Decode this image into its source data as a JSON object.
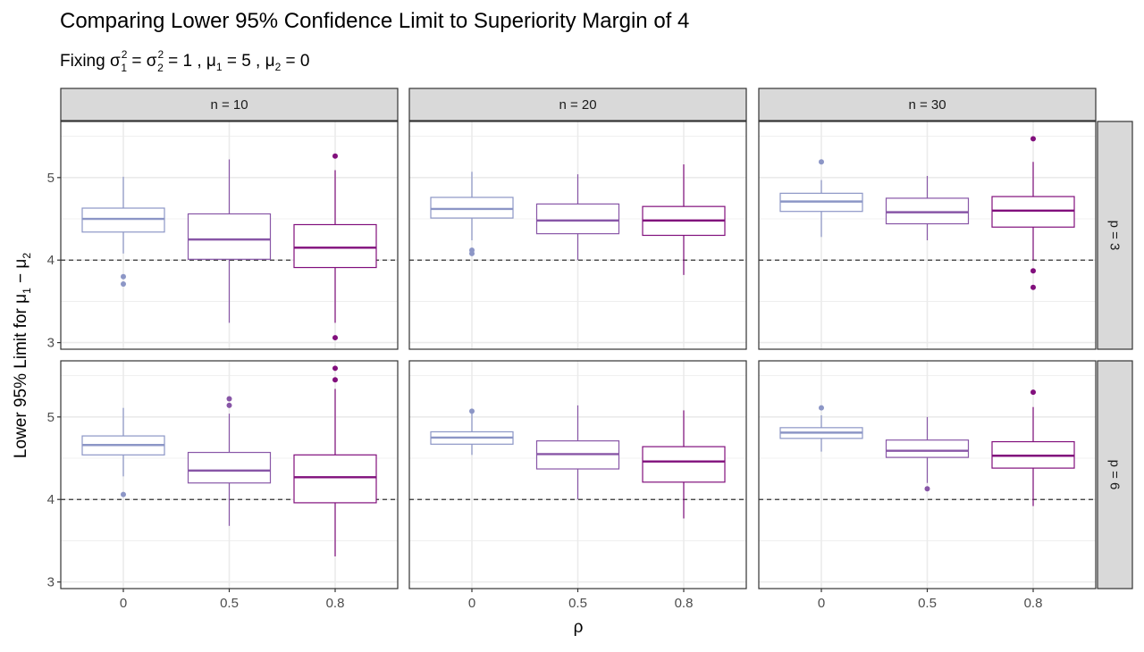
{
  "chart_data": {
    "type": "boxplot",
    "title": "Comparing Lower 95% Confidence Limit to Superiority Margin of 4",
    "subtitle": {
      "prefix": "Fixing ",
      "sigma": "σ",
      "sigma1_sub": "1",
      "sigma2_sub": "2",
      "sup": "2",
      "eq1": " = ",
      "eq2": " = 1 , ",
      "mu": "μ",
      "mu1_sub": "1",
      "mu1_rest": " = 5 , ",
      "mu2_sub": "2",
      "mu2_rest": " = 0"
    },
    "xlabel": "ρ",
    "ylabel": {
      "prefix": "Lower 95% Limit for ",
      "mu": "μ",
      "sub1": "1",
      "minus": " − ",
      "sub2": "2"
    },
    "x_categories": [
      "0",
      "0.5",
      "0.8"
    ],
    "y_ticks": [
      "3",
      "4",
      "5"
    ],
    "y_tick_values": [
      3,
      4,
      5
    ],
    "ylim": [
      2.92,
      5.68
    ],
    "reference_line": 4,
    "grid": true,
    "facet_cols": [
      "n = 10",
      "n = 20",
      "n = 30"
    ],
    "facet_rows": [
      "p = 3",
      "p = 6"
    ],
    "colors": {
      "0": "#8C96C6",
      "0.5": "#8856A7",
      "0.8": "#810F7C"
    },
    "panels": [
      {
        "row": 0,
        "col": 0,
        "boxes": [
          {
            "x": "0",
            "lower": 4.08,
            "q1": 4.34,
            "median": 4.5,
            "q3": 4.63,
            "upper": 5.01,
            "outliers": [
              3.8,
              3.71
            ]
          },
          {
            "x": "0.5",
            "lower": 3.24,
            "q1": 4.01,
            "median": 4.25,
            "q3": 4.56,
            "upper": 5.22,
            "outliers": []
          },
          {
            "x": "0.8",
            "lower": 3.24,
            "q1": 3.91,
            "median": 4.15,
            "q3": 4.43,
            "upper": 5.09,
            "outliers": [
              5.26,
              3.06
            ]
          }
        ]
      },
      {
        "row": 0,
        "col": 1,
        "boxes": [
          {
            "x": "0",
            "lower": 4.24,
            "q1": 4.51,
            "median": 4.62,
            "q3": 4.76,
            "upper": 5.07,
            "outliers": [
              4.12,
              4.08
            ]
          },
          {
            "x": "0.5",
            "lower": 4.0,
            "q1": 4.32,
            "median": 4.48,
            "q3": 4.68,
            "upper": 5.04,
            "outliers": []
          },
          {
            "x": "0.8",
            "lower": 3.82,
            "q1": 4.3,
            "median": 4.48,
            "q3": 4.65,
            "upper": 5.16,
            "outliers": []
          }
        ]
      },
      {
        "row": 0,
        "col": 2,
        "boxes": [
          {
            "x": "0",
            "lower": 4.28,
            "q1": 4.59,
            "median": 4.71,
            "q3": 4.81,
            "upper": 4.97,
            "outliers": [
              5.19
            ]
          },
          {
            "x": "0.5",
            "lower": 4.24,
            "q1": 4.44,
            "median": 4.58,
            "q3": 4.75,
            "upper": 5.02,
            "outliers": []
          },
          {
            "x": "0.8",
            "lower": 4.0,
            "q1": 4.4,
            "median": 4.6,
            "q3": 4.77,
            "upper": 5.19,
            "outliers": [
              5.47,
              3.87,
              3.67
            ]
          }
        ]
      },
      {
        "row": 1,
        "col": 0,
        "boxes": [
          {
            "x": "0",
            "lower": 4.28,
            "q1": 4.54,
            "median": 4.66,
            "q3": 4.77,
            "upper": 5.11,
            "outliers": [
              4.06
            ]
          },
          {
            "x": "0.5",
            "lower": 3.68,
            "q1": 4.2,
            "median": 4.35,
            "q3": 4.57,
            "upper": 5.04,
            "outliers": [
              5.22,
              5.14
            ]
          },
          {
            "x": "0.8",
            "lower": 3.31,
            "q1": 3.96,
            "median": 4.27,
            "q3": 4.54,
            "upper": 5.34,
            "outliers": [
              5.59,
              5.45
            ]
          }
        ]
      },
      {
        "row": 1,
        "col": 1,
        "boxes": [
          {
            "x": "0",
            "lower": 4.54,
            "q1": 4.67,
            "median": 4.75,
            "q3": 4.82,
            "upper": 5.06,
            "outliers": [
              5.07
            ]
          },
          {
            "x": "0.5",
            "lower": 4.0,
            "q1": 4.37,
            "median": 4.55,
            "q3": 4.71,
            "upper": 5.14,
            "outliers": []
          },
          {
            "x": "0.8",
            "lower": 3.77,
            "q1": 4.21,
            "median": 4.46,
            "q3": 4.64,
            "upper": 5.08,
            "outliers": []
          }
        ]
      },
      {
        "row": 1,
        "col": 2,
        "boxes": [
          {
            "x": "0",
            "lower": 4.58,
            "q1": 4.74,
            "median": 4.81,
            "q3": 4.87,
            "upper": 5.02,
            "outliers": [
              5.11
            ]
          },
          {
            "x": "0.5",
            "lower": 4.2,
            "q1": 4.51,
            "median": 4.59,
            "q3": 4.72,
            "upper": 5.0,
            "outliers": [
              4.13
            ]
          },
          {
            "x": "0.8",
            "lower": 3.92,
            "q1": 4.38,
            "median": 4.53,
            "q3": 4.7,
            "upper": 5.12,
            "outliers": [
              5.3
            ]
          }
        ]
      }
    ]
  }
}
